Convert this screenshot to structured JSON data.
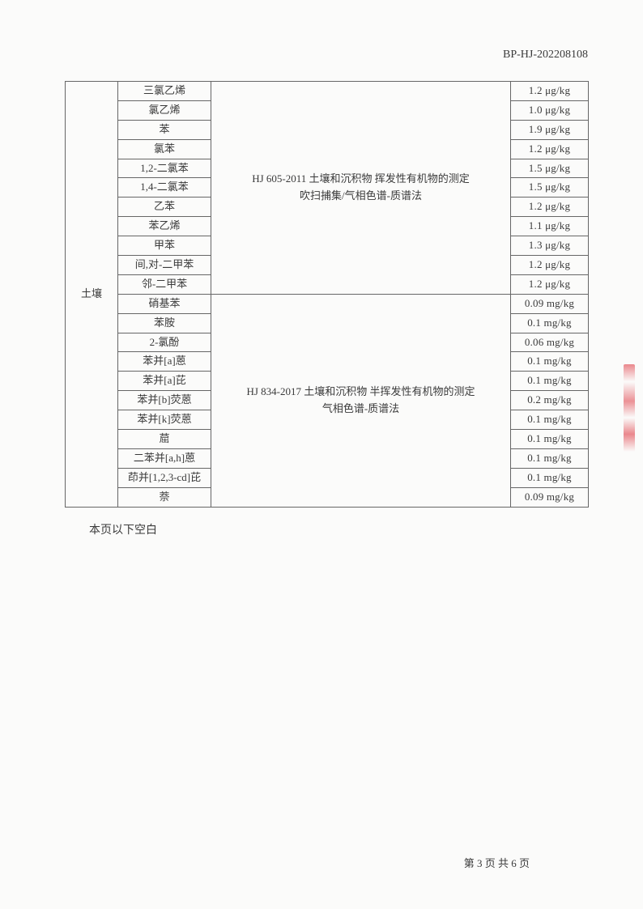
{
  "header": {
    "doc_id": "BP-HJ-202208108"
  },
  "table": {
    "category": "土壤",
    "group1": {
      "method": "HJ 605-2011  土壤和沉积物  挥发性有机物的测定\n吹扫捕集/气相色谱-质谱法",
      "rows": [
        {
          "name": "三氯乙烯",
          "value": "1.2 μg/kg"
        },
        {
          "name": "氯乙烯",
          "value": "1.0 μg/kg"
        },
        {
          "name": "苯",
          "value": "1.9 μg/kg"
        },
        {
          "name": "氯苯",
          "value": "1.2 μg/kg"
        },
        {
          "name": "1,2-二氯苯",
          "value": "1.5 μg/kg"
        },
        {
          "name": "1,4-二氯苯",
          "value": "1.5 μg/kg"
        },
        {
          "name": "乙苯",
          "value": "1.2 μg/kg"
        },
        {
          "name": "苯乙烯",
          "value": "1.1 μg/kg"
        },
        {
          "name": "甲苯",
          "value": "1.3 μg/kg"
        },
        {
          "name": "间,对-二甲苯",
          "value": "1.2 μg/kg"
        },
        {
          "name": "邻-二甲苯",
          "value": "1.2 μg/kg"
        }
      ]
    },
    "group2": {
      "method": "HJ 834-2017  土壤和沉积物  半挥发性有机物的测定\n气相色谱-质谱法",
      "rows": [
        {
          "name": "硝基苯",
          "value": "0.09 mg/kg"
        },
        {
          "name": "苯胺",
          "value": "0.1 mg/kg"
        },
        {
          "name": "2-氯酚",
          "value": "0.06 mg/kg"
        },
        {
          "name": "苯并[a]蒽",
          "value": "0.1 mg/kg"
        },
        {
          "name": "苯并[a]芘",
          "value": "0.1 mg/kg"
        },
        {
          "name": "苯并[b]荧蒽",
          "value": "0.2 mg/kg"
        },
        {
          "name": "苯并[k]荧蒽",
          "value": "0.1 mg/kg"
        },
        {
          "name": "䓛",
          "value": "0.1 mg/kg"
        },
        {
          "name": "二苯并[a,h]蒽",
          "value": "0.1 mg/kg"
        },
        {
          "name": "茚并[1,2,3-cd]芘",
          "value": "0.1 mg/kg"
        },
        {
          "name": "萘",
          "value": "0.09 mg/kg"
        }
      ]
    }
  },
  "footer": {
    "blank_note": "本页以下空白",
    "page_label": "第 3 页  共 6 页"
  },
  "colors": {
    "bg": "#fbfbfa",
    "border": "#666666",
    "text": "#3a3a3a",
    "stamp": "#dc2832"
  }
}
